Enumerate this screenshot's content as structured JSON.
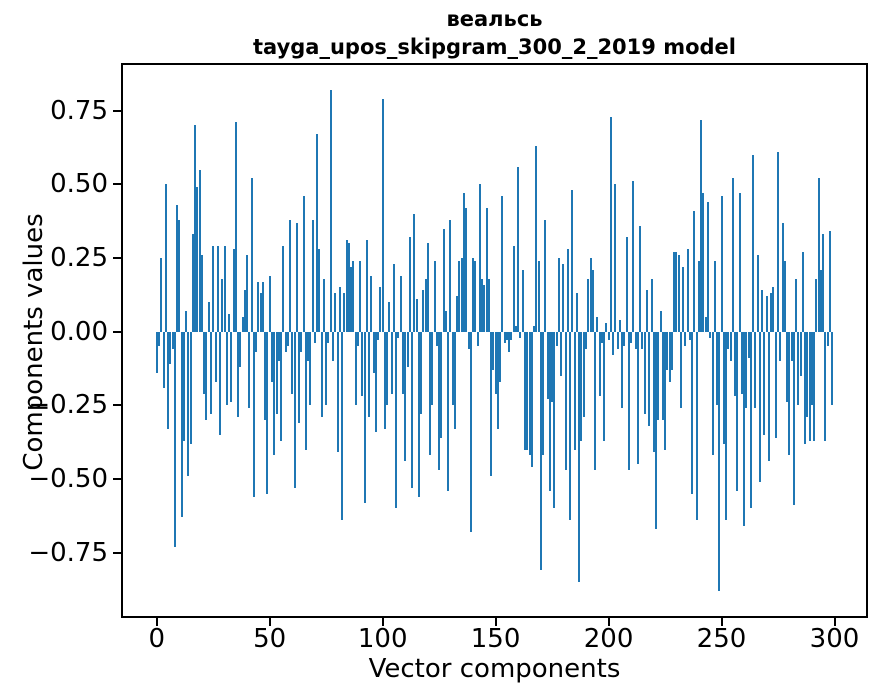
{
  "figure": {
    "background": "#ffffff"
  },
  "chart_data": {
    "type": "bar",
    "title": "веальсь",
    "subtitle": "tayga_upos_skipgram_300_2_2019 model",
    "xlabel": "Vector components",
    "ylabel": "Components values",
    "bar_color": "#1f77b4",
    "axis_color": "#000000",
    "grid": false,
    "legend_position": "none",
    "n_components": 300,
    "xlim": [
      -14.95,
      313.95
    ],
    "ylim": [
      -0.965,
      0.905
    ],
    "x_ticks": [
      0,
      50,
      100,
      150,
      200,
      250,
      300
    ],
    "x_tick_labels": [
      "0",
      "50",
      "100",
      "150",
      "200",
      "250",
      "300"
    ],
    "y_ticks": [
      0.75,
      0.5,
      0.25,
      0.0,
      -0.25,
      -0.5,
      -0.75
    ],
    "y_tick_labels": [
      "0.75",
      "0.50",
      "0.25",
      "0.00",
      "−0.25",
      "−0.50",
      "−0.75"
    ],
    "values": [
      -0.14,
      -0.05,
      0.25,
      -0.19,
      0.5,
      -0.33,
      -0.11,
      -0.06,
      -0.73,
      0.43,
      0.38,
      -0.63,
      -0.37,
      0.07,
      -0.49,
      -0.38,
      0.33,
      0.7,
      0.49,
      0.55,
      0.26,
      -0.21,
      -0.3,
      0.1,
      -0.28,
      0.29,
      -0.17,
      0.29,
      -0.35,
      0.18,
      0.29,
      -0.25,
      0.06,
      -0.24,
      0.28,
      0.71,
      -0.29,
      -0.12,
      0.05,
      0.14,
      0.26,
      -0.26,
      0.52,
      -0.56,
      -0.07,
      0.17,
      0.13,
      0.17,
      -0.3,
      -0.55,
      0.19,
      -0.17,
      -0.42,
      -0.28,
      -0.1,
      -0.37,
      0.29,
      -0.07,
      -0.05,
      0.38,
      -0.21,
      -0.53,
      0.37,
      -0.31,
      -0.07,
      0.46,
      -0.4,
      -0.1,
      -0.25,
      0.38,
      -0.04,
      0.67,
      0.28,
      -0.29,
      0.18,
      -0.25,
      -0.04,
      0.82,
      -0.1,
      0.13,
      -0.41,
      0.15,
      -0.64,
      0.13,
      0.31,
      0.3,
      0.22,
      0.24,
      -0.25,
      -0.05,
      0.24,
      -0.22,
      -0.58,
      0.31,
      -0.29,
      0.19,
      -0.14,
      -0.34,
      -0.03,
      0.15,
      0.79,
      -0.33,
      -0.25,
      0.1,
      -0.21,
      0.23,
      -0.6,
      -0.02,
      0.19,
      -0.21,
      -0.44,
      -0.12,
      0.32,
      -0.53,
      0.4,
      0.11,
      -0.56,
      -0.28,
      0.14,
      0.18,
      0.3,
      -0.42,
      -0.25,
      0.24,
      -0.05,
      -0.47,
      -0.36,
      0.35,
      0.07,
      -0.54,
      0.38,
      -0.25,
      -0.33,
      0.12,
      0.24,
      0.25,
      0.47,
      0.42,
      -0.06,
      -0.68,
      0.25,
      0.24,
      -0.05,
      0.5,
      0.18,
      0.16,
      0.42,
      0.18,
      -0.49,
      -0.13,
      -0.21,
      -0.33,
      -0.17,
      0.46,
      -0.04,
      -0.03,
      -0.07,
      -0.03,
      0.29,
      0.02,
      0.56,
      -0.02,
      0.21,
      -0.4,
      -0.4,
      -0.42,
      -0.46,
      0.02,
      0.63,
      0.24,
      -0.81,
      -0.42,
      0.38,
      -0.23,
      -0.54,
      -0.24,
      -0.6,
      -0.05,
      0.25,
      -0.15,
      0.23,
      -0.47,
      0.28,
      -0.64,
      0.48,
      -0.4,
      0.13,
      -0.85,
      -0.37,
      -0.29,
      -0.06,
      0.18,
      0.25,
      0.21,
      -0.47,
      0.05,
      -0.22,
      -0.04,
      -0.37,
      0.03,
      -0.03,
      0.73,
      -0.08,
      0.5,
      -0.06,
      0.04,
      -0.26,
      -0.05,
      0.32,
      -0.47,
      -0.04,
      0.51,
      -0.06,
      -0.45,
      0.36,
      -0.06,
      -0.28,
      0.14,
      -0.32,
      0.18,
      -0.41,
      -0.67,
      -0.3,
      0.07,
      -0.3,
      -0.4,
      -0.13,
      -0.17,
      -0.13,
      0.27,
      0.27,
      0.26,
      -0.26,
      0.22,
      -0.05,
      0.28,
      -0.03,
      -0.55,
      0.41,
      -0.64,
      0.24,
      0.72,
      0.47,
      0.05,
      0.44,
      -0.02,
      -0.42,
      0.24,
      -0.25,
      -0.88,
      0.46,
      -0.38,
      -0.64,
      -0.06,
      -0.1,
      0.52,
      -0.22,
      -0.54,
      0.47,
      -0.21,
      -0.66,
      -0.26,
      -0.09,
      -0.6,
      0.6,
      -0.26,
      0.26,
      -0.51,
      0.14,
      -0.35,
      0.12,
      -0.44,
      0.13,
      0.15,
      -0.36,
      0.61,
      -0.1,
      0.37,
      0.24,
      -0.24,
      -0.42,
      -0.1,
      -0.59,
      0.18,
      -0.25,
      -0.15,
      0.27,
      -0.38,
      -0.29,
      -0.37,
      -0.25,
      -0.37,
      0.18,
      0.52,
      0.21,
      0.33,
      -0.37,
      -0.05,
      0.34,
      -0.25
    ]
  }
}
